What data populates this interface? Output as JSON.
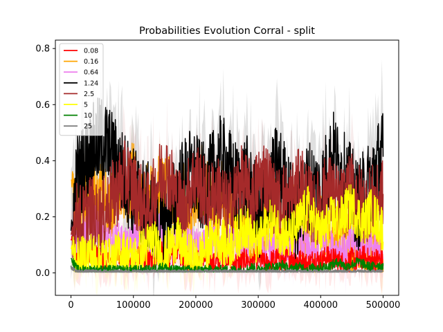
{
  "chart_data": {
    "type": "line",
    "title": "Probabilities Evolution Corral  - split",
    "xlabel": "",
    "ylabel": "",
    "xlim": [
      -25000,
      525000
    ],
    "ylim": [
      -0.08,
      0.83
    ],
    "x_ticks": [
      0,
      100000,
      200000,
      300000,
      400000,
      500000
    ],
    "x_tick_labels": [
      "0",
      "100000",
      "200000",
      "300000",
      "400000",
      "500000"
    ],
    "y_ticks": [
      0.0,
      0.2,
      0.4,
      0.6,
      0.8
    ],
    "y_tick_labels": [
      "0.0",
      "0.2",
      "0.4",
      "0.6",
      "0.8"
    ],
    "grid": false,
    "legend_position": "top-left",
    "x": [
      0,
      10000,
      20000,
      30000,
      40000,
      50000,
      60000,
      70000,
      80000,
      90000,
      100000,
      110000,
      120000,
      130000,
      140000,
      150000,
      160000,
      170000,
      180000,
      190000,
      200000,
      210000,
      220000,
      230000,
      240000,
      250000,
      260000,
      270000,
      280000,
      290000,
      300000,
      310000,
      320000,
      330000,
      340000,
      350000,
      360000,
      370000,
      380000,
      390000,
      400000,
      410000,
      420000,
      430000,
      440000,
      450000,
      460000,
      470000,
      480000,
      490000,
      500000
    ],
    "series": [
      {
        "name": "0.08",
        "color": "#ff0000",
        "values": [
          0.12,
          0.03,
          0.05,
          0.08,
          0.06,
          0.04,
          0.03,
          0.05,
          0.07,
          0.04,
          0.03,
          0.06,
          0.05,
          0.04,
          0.08,
          0.06,
          0.04,
          0.09,
          0.05,
          0.04,
          0.03,
          0.06,
          0.04,
          0.03,
          0.05,
          0.07,
          0.04,
          0.03,
          0.05,
          0.04,
          0.06,
          0.03,
          0.04,
          0.05,
          0.04,
          0.06,
          0.05,
          0.04,
          0.03,
          0.05,
          0.04,
          0.06,
          0.05,
          0.04,
          0.03,
          0.05,
          0.04,
          0.06,
          0.04,
          0.05,
          0.04
        ]
      },
      {
        "name": "0.16",
        "color": "#ffa500",
        "values": [
          0.33,
          0.2,
          0.27,
          0.31,
          0.24,
          0.32,
          0.2,
          0.27,
          0.34,
          0.28,
          0.36,
          0.22,
          0.3,
          0.26,
          0.33,
          0.28,
          0.31,
          0.22,
          0.27,
          0.14,
          0.23,
          0.35,
          0.26,
          0.18,
          0.3,
          0.22,
          0.27,
          0.12,
          0.18,
          0.25,
          0.14,
          0.18,
          0.27,
          0.2,
          0.13,
          0.16,
          0.23,
          0.15,
          0.2,
          0.09,
          0.17,
          0.13,
          0.1,
          0.16,
          0.2,
          0.09,
          0.14,
          0.12,
          0.1,
          0.08,
          0.06
        ]
      },
      {
        "name": "0.64",
        "color": "#ee82ee",
        "values": [
          0.16,
          0.09,
          0.13,
          0.16,
          0.18,
          0.12,
          0.1,
          0.11,
          0.12,
          0.09,
          0.13,
          0.11,
          0.08,
          0.13,
          0.16,
          0.1,
          0.08,
          0.12,
          0.14,
          0.09,
          0.1,
          0.08,
          0.13,
          0.11,
          0.07,
          0.1,
          0.12,
          0.09,
          0.08,
          0.11,
          0.1,
          0.07,
          0.09,
          0.12,
          0.08,
          0.1,
          0.09,
          0.11,
          0.08,
          0.07,
          0.1,
          0.12,
          0.08,
          0.09,
          0.07,
          0.11,
          0.08,
          0.1,
          0.09,
          0.07,
          0.08
        ]
      },
      {
        "name": "1.24",
        "color": "#000000",
        "values": [
          0.15,
          0.34,
          0.37,
          0.42,
          0.46,
          0.47,
          0.44,
          0.4,
          0.36,
          0.33,
          0.29,
          0.27,
          0.24,
          0.22,
          0.15,
          0.18,
          0.22,
          0.28,
          0.32,
          0.35,
          0.34,
          0.3,
          0.32,
          0.36,
          0.4,
          0.38,
          0.32,
          0.3,
          0.34,
          0.27,
          0.2,
          0.25,
          0.3,
          0.38,
          0.33,
          0.26,
          0.2,
          0.25,
          0.32,
          0.3,
          0.28,
          0.36,
          0.42,
          0.37,
          0.33,
          0.29,
          0.24,
          0.28,
          0.32,
          0.38,
          0.42
        ]
      },
      {
        "name": "2.5",
        "color": "#a52a2a",
        "values": [
          0.14,
          0.2,
          0.18,
          0.23,
          0.19,
          0.2,
          0.25,
          0.28,
          0.32,
          0.35,
          0.3,
          0.27,
          0.22,
          0.26,
          0.33,
          0.38,
          0.33,
          0.26,
          0.22,
          0.3,
          0.35,
          0.3,
          0.25,
          0.29,
          0.28,
          0.22,
          0.25,
          0.33,
          0.3,
          0.26,
          0.32,
          0.36,
          0.3,
          0.24,
          0.27,
          0.25,
          0.3,
          0.32,
          0.26,
          0.22,
          0.25,
          0.3,
          0.28,
          0.24,
          0.26,
          0.3,
          0.27,
          0.23,
          0.26,
          0.25,
          0.28
        ]
      },
      {
        "name": "5",
        "color": "#ffff00",
        "values": [
          0.09,
          0.04,
          0.05,
          0.07,
          0.05,
          0.06,
          0.04,
          0.05,
          0.08,
          0.06,
          0.05,
          0.07,
          0.09,
          0.12,
          0.08,
          0.06,
          0.1,
          0.12,
          0.08,
          0.06,
          0.04,
          0.07,
          0.1,
          0.13,
          0.12,
          0.09,
          0.11,
          0.14,
          0.17,
          0.12,
          0.1,
          0.15,
          0.18,
          0.16,
          0.14,
          0.12,
          0.16,
          0.2,
          0.23,
          0.18,
          0.14,
          0.17,
          0.2,
          0.18,
          0.22,
          0.24,
          0.2,
          0.18,
          0.22,
          0.19,
          0.16
        ]
      },
      {
        "name": "10",
        "color": "#008000",
        "values": [
          0.05,
          0.01,
          0.01,
          0.01,
          0.01,
          0.01,
          0.01,
          0.01,
          0.01,
          0.01,
          0.01,
          0.01,
          0.01,
          0.01,
          0.02,
          0.02,
          0.01,
          0.01,
          0.01,
          0.01,
          0.01,
          0.01,
          0.01,
          0.01,
          0.01,
          0.01,
          0.01,
          0.01,
          0.01,
          0.02,
          0.01,
          0.02,
          0.02,
          0.02,
          0.03,
          0.01,
          0.02,
          0.02,
          0.01,
          0.02,
          0.02,
          0.02,
          0.03,
          0.04,
          0.02,
          0.03,
          0.04,
          0.03,
          0.02,
          0.03,
          0.02
        ]
      },
      {
        "name": "25",
        "color": "#808080",
        "values": [
          0.02,
          0.005,
          0.005,
          0.005,
          0.005,
          0.005,
          0.005,
          0.005,
          0.005,
          0.005,
          0.005,
          0.005,
          0.005,
          0.005,
          0.005,
          0.005,
          0.005,
          0.005,
          0.005,
          0.005,
          0.005,
          0.005,
          0.005,
          0.005,
          0.005,
          0.005,
          0.005,
          0.005,
          0.005,
          0.005,
          0.005,
          0.005,
          0.005,
          0.005,
          0.005,
          0.005,
          0.005,
          0.005,
          0.005,
          0.005,
          0.005,
          0.005,
          0.005,
          0.005,
          0.005,
          0.005,
          0.005,
          0.005,
          0.005,
          0.005,
          0.005
        ]
      }
    ]
  }
}
